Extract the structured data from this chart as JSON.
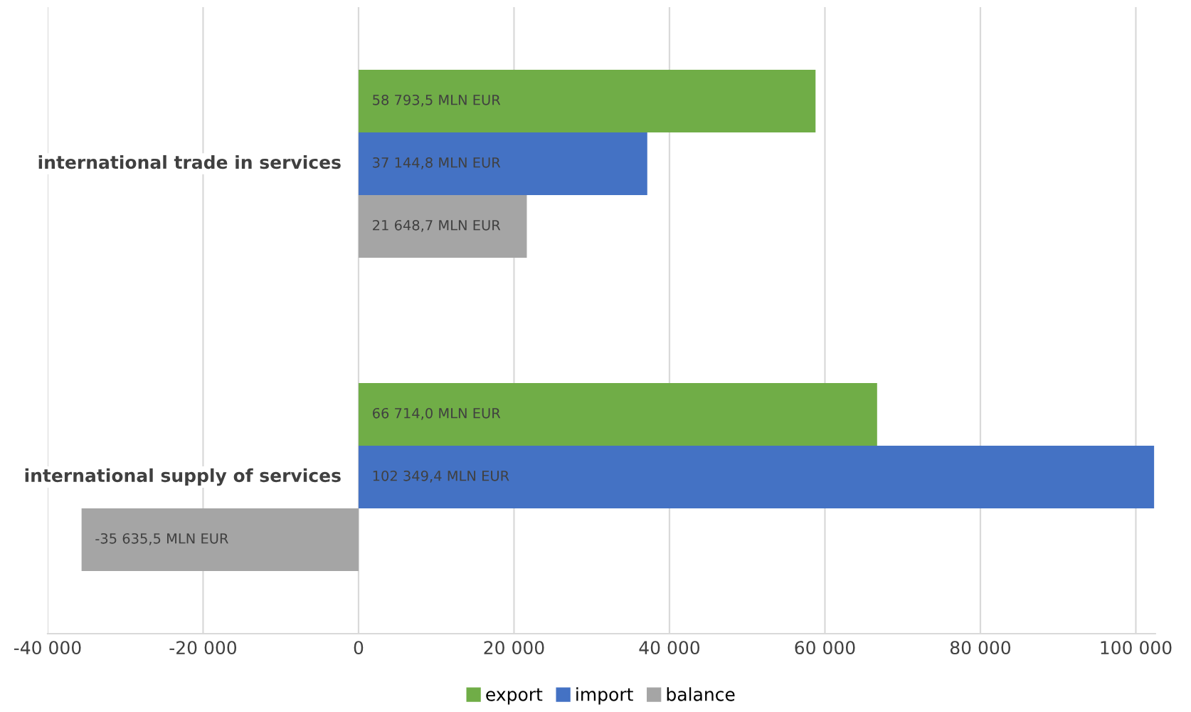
{
  "chart_data": {
    "type": "bar",
    "orientation": "horizontal",
    "categories": [
      "international trade in services",
      "international supply of services"
    ],
    "series": [
      {
        "name": "export",
        "color": "#70ad47",
        "values": [
          58793.5,
          66714.0
        ],
        "value_labels": [
          "58 793,5 MLN EUR",
          "66 714,0 MLN EUR"
        ]
      },
      {
        "name": "import",
        "color": "#4472c4",
        "values": [
          37144.8,
          102349.4
        ],
        "value_labels": [
          "37 144,8 MLN EUR",
          "102 349,4 MLN EUR"
        ]
      },
      {
        "name": "balance",
        "color": "#a5a5a5",
        "values": [
          21648.7,
          -35635.5
        ],
        "value_labels": [
          "21 648,7 MLN EUR",
          "-35 635,5 MLN EUR"
        ]
      }
    ],
    "xlim": [
      -40000,
      102500
    ],
    "xticks": [
      {
        "value": -40000,
        "label": "-40 000"
      },
      {
        "value": -20000,
        "label": "-20 000"
      },
      0,
      {
        "value": 20000,
        "label": "20 000"
      },
      {
        "value": 40000,
        "label": "40 000"
      },
      {
        "value": 60000,
        "label": "60 000"
      },
      {
        "value": 80000,
        "label": "80 000"
      },
      {
        "value": 100000,
        "label": "100 000"
      }
    ],
    "grid": "x",
    "legend": "bottom"
  }
}
